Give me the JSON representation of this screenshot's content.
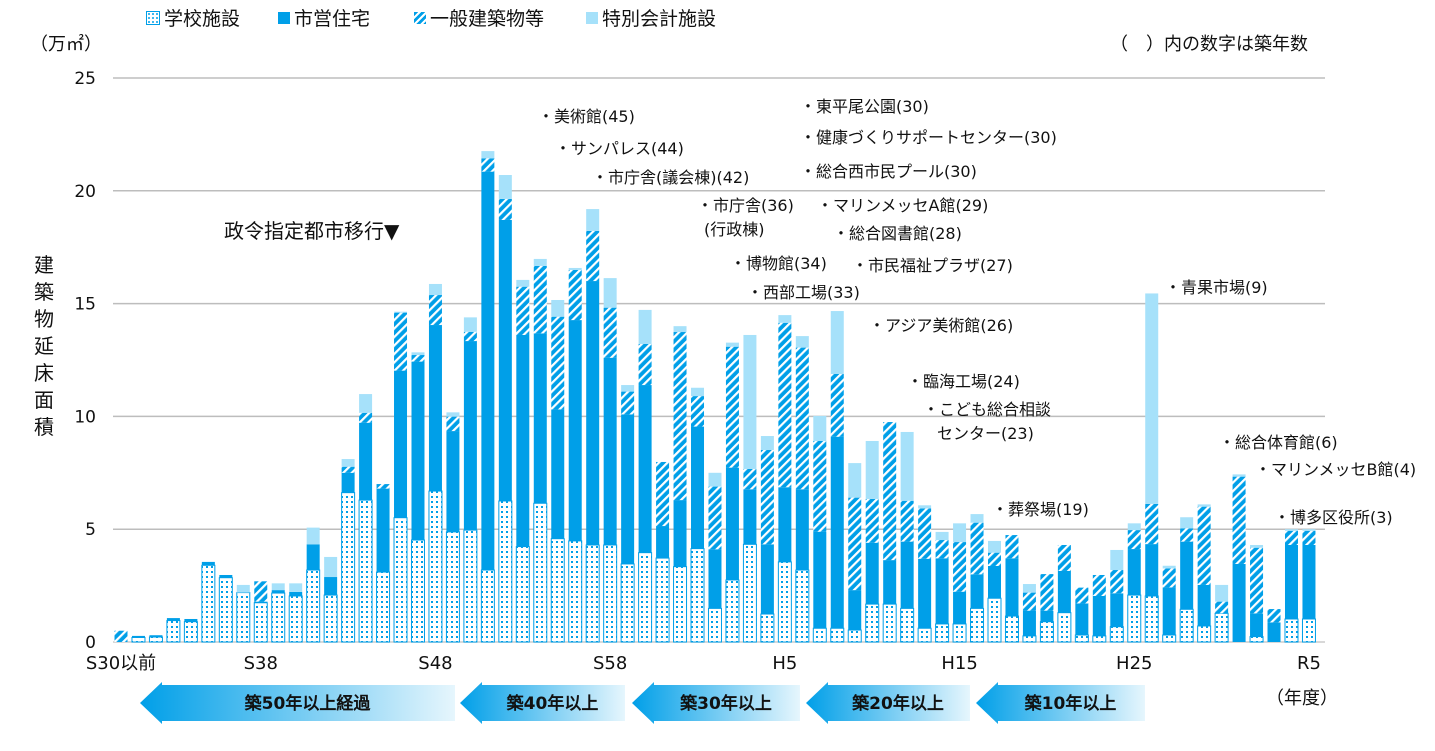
{
  "chart_data": {
    "type": "bar",
    "stacked": true,
    "unit_label": "（万㎡）",
    "ylabel": "建築物延床面積",
    "xlabel": "（年度）",
    "note": "（　）内の数字は築年数",
    "ylim": [
      0,
      25
    ],
    "yticks": [
      0,
      5,
      10,
      15,
      20,
      25
    ],
    "grid": true,
    "legend_position": "top",
    "tick_labels": [
      {
        "label": "S30以前",
        "index": 0
      },
      {
        "label": "S38",
        "index": 8
      },
      {
        "label": "S48",
        "index": 18
      },
      {
        "label": "S58",
        "index": 28
      },
      {
        "label": "H5",
        "index": 38
      },
      {
        "label": "H15",
        "index": 48
      },
      {
        "label": "H25",
        "index": 58
      },
      {
        "label": "R5",
        "index": 68
      }
    ],
    "categories": [
      "S30以前",
      "S31",
      "S32",
      "S33",
      "S34",
      "S35",
      "S36",
      "S37",
      "S38",
      "S39",
      "S40",
      "S41",
      "S42",
      "S43",
      "S44",
      "S45",
      "S46",
      "S47",
      "S48",
      "S49",
      "S50",
      "S51",
      "S52",
      "S53",
      "S54",
      "S55",
      "S56",
      "S57",
      "S58",
      "S59",
      "S60",
      "S61",
      "S62",
      "S63",
      "H1",
      "H2",
      "H3",
      "H4",
      "H5",
      "H6",
      "H7",
      "H8",
      "H9",
      "H10",
      "H11",
      "H12",
      "H13",
      "H14",
      "H15",
      "H16",
      "H17",
      "H18",
      "H19",
      "H20",
      "H21",
      "H22",
      "H23",
      "H24",
      "H25",
      "H26",
      "H27",
      "H28",
      "H29",
      "H30",
      "R1",
      "R2",
      "R3",
      "R4",
      "R5"
    ],
    "series": [
      {
        "name": "学校施設",
        "color": "#009FE8",
        "pattern": "dots",
        "values": [
          0,
          0.2,
          0.22,
          0.95,
          0.9,
          3.4,
          2.85,
          2.19,
          1.74,
          2.17,
          2.04,
          3.19,
          2.08,
          6.62,
          6.29,
          3.1,
          5.51,
          4.52,
          6.69,
          4.88,
          4.96,
          3.19,
          6.25,
          4.23,
          6.15,
          4.58,
          4.48,
          4.3,
          4.3,
          3.46,
          3.96,
          3.72,
          3.34,
          4.14,
          1.49,
          2.75,
          4.33,
          1.24,
          3.55,
          3.19,
          0.61,
          0.61,
          0.53,
          1.68,
          1.68,
          1.49,
          0.61,
          0.8,
          0.8,
          1.49,
          1.94,
          1.15,
          0.27,
          0.9,
          1.3,
          0.31,
          0.27,
          0.68,
          2.08,
          2.04,
          0.31,
          1.45,
          0.71,
          1.27,
          0,
          0.24,
          0,
          1.02,
          1.02
        ]
      },
      {
        "name": "市営住宅",
        "color": "#009FE8",
        "pattern": "solid",
        "values": [
          0,
          0.07,
          0.08,
          0.11,
          0.12,
          0.15,
          0.12,
          0,
          0.05,
          0.13,
          0.18,
          1.14,
          0.8,
          0.88,
          3.43,
          3.7,
          6.52,
          7.91,
          7.36,
          4.47,
          8.38,
          17.66,
          12.46,
          9.38,
          7.53,
          5.73,
          9.79,
          11.7,
          8.3,
          6.63,
          7.43,
          1.42,
          2.95,
          5.41,
          2.62,
          4.98,
          2.44,
          3.09,
          3.31,
          3.58,
          4.28,
          8.49,
          1.77,
          2.72,
          1.95,
          2.96,
          3.08,
          2.91,
          1.43,
          1.51,
          1.43,
          2.56,
          1.12,
          0.49,
          1.85,
          1.4,
          1.77,
          1.48,
          2.04,
          2.3,
          2.11,
          3.0,
          1.82,
          0,
          3.46,
          1.03,
          0.87,
          3.28,
          3.28
        ]
      },
      {
        "name": "一般建築物等",
        "color": "#009FE8",
        "pattern": "hatch",
        "values": [
          0.5,
          0,
          0,
          0,
          0,
          0,
          0,
          0,
          0.9,
          0,
          0,
          0,
          0,
          0.27,
          0.44,
          0.2,
          2.57,
          0.29,
          1.33,
          0.64,
          0.41,
          0.59,
          0.93,
          2.14,
          2.99,
          4.11,
          2.22,
          2.22,
          2.22,
          1.01,
          1.82,
          2.84,
          7.45,
          1.35,
          2.78,
          5.36,
          0.9,
          4.18,
          7.29,
          6.28,
          4.02,
          2.78,
          4.1,
          1.94,
          6.12,
          1.81,
          2.23,
          0.81,
          2.2,
          2.29,
          0.59,
          1.03,
          0.8,
          1.62,
          1.15,
          0.7,
          0.93,
          1.03,
          0.84,
          1.78,
          0.84,
          0.59,
          3.47,
          0.52,
          3.87,
          2.91,
          0.59,
          0.63,
          0.63
        ]
      },
      {
        "name": "特別会計施設",
        "color": "#A6E1FA",
        "pattern": "solid",
        "values": [
          0,
          0,
          0,
          0,
          0,
          0,
          0,
          0.34,
          0,
          0.3,
          0.38,
          0.74,
          0.89,
          0.34,
          0.83,
          0,
          0.04,
          0.12,
          0.49,
          0.19,
          0.64,
          0.32,
          1.06,
          0.3,
          0.31,
          0.74,
          0.09,
          0.97,
          1.31,
          0.29,
          1.51,
          0,
          0.26,
          0.37,
          0.61,
          0.18,
          5.94,
          0.62,
          0.34,
          0.51,
          1.11,
          2.79,
          1.53,
          2.57,
          0,
          3.05,
          0.14,
          0.36,
          0.83,
          0.38,
          0.52,
          0,
          0.38,
          0,
          0,
          0,
          0,
          0.89,
          0.3,
          9.33,
          0.12,
          0.49,
          0.1,
          0.74,
          0.1,
          0.12,
          0,
          0.07,
          0.07
        ]
      }
    ],
    "annotations": [
      "・美術館(45)",
      "・サンパレス(44)",
      "・市庁舎(議会棟)(42)",
      "・東平尾公園(30)",
      "・健康づくりサポートセンター(30)",
      "・総合西市民プール(30)",
      "・市庁舎(36)",
      "(行政棟)",
      "・マリンメッセA館(29)",
      "・総合図書館(28)",
      "・博物館(34)",
      "・市民福祉プラザ(27)",
      "・西部工場(33)",
      "・アジア美術館(26)",
      "・臨海工場(24)",
      "・こども総合相談",
      "センター(23)",
      "・葬祭場(19)",
      "・青果市場(9)",
      "・総合体育館(6)",
      "・マリンメッセB館(4)",
      "・博多区役所(3)"
    ],
    "milestone": "政令指定都市移行▼",
    "age_bands": [
      "築50年以上経過",
      "築40年以上",
      "築30年以上",
      "築20年以上",
      "築10年以上"
    ]
  }
}
